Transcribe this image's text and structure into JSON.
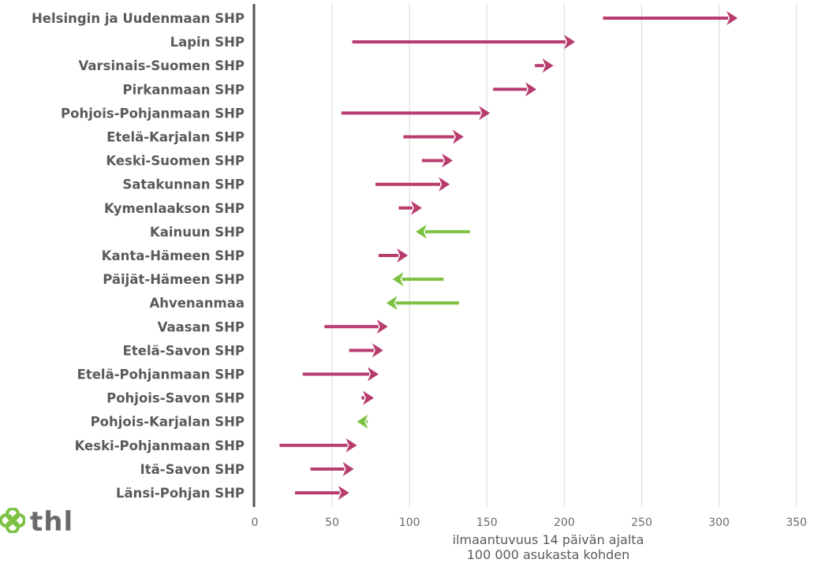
{
  "chart_data": {
    "type": "arrow",
    "xlabel_lines": [
      "ilmaantuvuus 14 päivän ajalta",
      "100 000 asukasta kohden"
    ],
    "xlim": [
      0,
      350
    ],
    "xticks": [
      "0",
      "50",
      "100",
      "150",
      "200",
      "250",
      "300",
      "350"
    ],
    "grid": true,
    "colors": {
      "increase": "#b83c6e",
      "decrease": "#7cc142"
    },
    "categories": [
      "Helsingin ja Uudenmaan SHP",
      "Lapin SHP",
      "Varsinais-Suomen SHP",
      "Pirkanmaan SHP",
      "Pohjois-Pohjanmaan SHP",
      "Etelä-Karjalan SHP",
      "Keski-Suomen SHP",
      "Satakunnan SHP",
      "Kymenlaakson SHP",
      "Kainuun SHP",
      "Kanta-Hämeen SHP",
      "Päijät-Hämeen SHP",
      "Ahvenanmaa",
      "Vaasan SHP",
      "Etelä-Savon SHP",
      "Etelä-Pohjanmaan SHP",
      "Pohjois-Savon SHP",
      "Pohjois-Karjalan SHP",
      "Keski-Pohjanmaan SHP",
      "Itä-Savon SHP",
      "Länsi-Pohjan SHP"
    ],
    "start": [
      225,
      63,
      181,
      154,
      56,
      96,
      108,
      78,
      93,
      139,
      80,
      122,
      132,
      45,
      61,
      31,
      69,
      73,
      16,
      36,
      26
    ],
    "end": [
      312,
      207,
      193,
      182,
      152,
      135,
      128,
      126,
      108,
      104,
      99,
      89,
      85,
      86,
      83,
      80,
      77,
      66,
      66,
      64,
      61
    ]
  },
  "logo": {
    "text": "thl"
  }
}
